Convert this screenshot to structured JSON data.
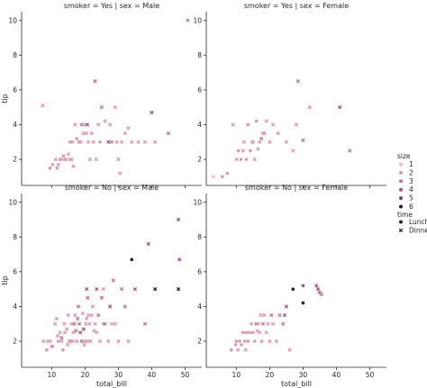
{
  "chart_data": {
    "type": "scatter",
    "facets": [
      {
        "title": "smoker = Yes | sex = Male",
        "row": 0,
        "col": 0,
        "points": [
          [
            7.3,
            5.1,
            2,
            "D"
          ],
          [
            9.5,
            1.5,
            2,
            "L"
          ],
          [
            10.3,
            1.7,
            2,
            "D"
          ],
          [
            11.2,
            2.0,
            2,
            "D"
          ],
          [
            11.6,
            1.5,
            2,
            "L"
          ],
          [
            12.0,
            1.7,
            2,
            "D"
          ],
          [
            12.5,
            2.0,
            2,
            "L"
          ],
          [
            13.0,
            2.0,
            2,
            "D"
          ],
          [
            13.5,
            2.2,
            2,
            "D"
          ],
          [
            14.0,
            2.0,
            2,
            "L"
          ],
          [
            14.3,
            2.0,
            2,
            "D"
          ],
          [
            15.0,
            2.3,
            2,
            "D"
          ],
          [
            15.5,
            2.0,
            2,
            "L"
          ],
          [
            16.0,
            2.0,
            2,
            "D"
          ],
          [
            16.5,
            1.6,
            2,
            "D"
          ],
          [
            15.5,
            3.0,
            2,
            "D"
          ],
          [
            16.3,
            3.0,
            2,
            "D"
          ],
          [
            17.0,
            4.0,
            2,
            "D"
          ],
          [
            17.5,
            3.2,
            2,
            "L"
          ],
          [
            18.2,
            3.0,
            2,
            "D"
          ],
          [
            18.7,
            3.0,
            2,
            "D"
          ],
          [
            19.0,
            4.0,
            3,
            "D"
          ],
          [
            19.5,
            3.5,
            2,
            "D"
          ],
          [
            20.0,
            4.0,
            2,
            "D"
          ],
          [
            20.4,
            3.5,
            2,
            "D"
          ],
          [
            20.7,
            4.0,
            4,
            "D"
          ],
          [
            21.0,
            3.0,
            2,
            "D"
          ],
          [
            21.5,
            2.0,
            2,
            "D"
          ],
          [
            22.0,
            3.5,
            2,
            "D"
          ],
          [
            22.5,
            3.0,
            2,
            "D"
          ],
          [
            23.0,
            6.5,
            3,
            "D"
          ],
          [
            23.3,
            2.0,
            2,
            "D"
          ],
          [
            24.0,
            4.0,
            2,
            "D"
          ],
          [
            24.5,
            3.0,
            2,
            "L"
          ],
          [
            25.0,
            5.0,
            3,
            "D"
          ],
          [
            26.0,
            4.2,
            2,
            "D"
          ],
          [
            27.0,
            3.0,
            4,
            "D"
          ],
          [
            27.5,
            4.0,
            2,
            "D"
          ],
          [
            28.0,
            3.0,
            3,
            "D"
          ],
          [
            29.0,
            5.0,
            2,
            "D"
          ],
          [
            29.5,
            3.0,
            2,
            "D"
          ],
          [
            30.0,
            2.0,
            2,
            "D"
          ],
          [
            30.5,
            1.2,
            2,
            "D"
          ],
          [
            31.0,
            3.0,
            2,
            "D"
          ],
          [
            32.0,
            3.5,
            2,
            "D"
          ],
          [
            33.0,
            3.8,
            2,
            "D"
          ],
          [
            34.0,
            3.0,
            2,
            "D"
          ],
          [
            36.0,
            3.0,
            2,
            "D"
          ],
          [
            38.0,
            3.0,
            2,
            "D"
          ],
          [
            40.0,
            4.7,
            4,
            "D"
          ],
          [
            41.0,
            3.0,
            2,
            "D"
          ],
          [
            45.0,
            3.5,
            3,
            "D"
          ],
          [
            50.8,
            10.0,
            3,
            "D"
          ]
        ]
      },
      {
        "title": "smoker = Yes | sex = Female",
        "row": 0,
        "col": 1,
        "points": [
          [
            3.1,
            1.0,
            1,
            "D"
          ],
          [
            5.8,
            1.0,
            2,
            "L"
          ],
          [
            7.3,
            1.2,
            2,
            "L"
          ],
          [
            9.0,
            4.0,
            2,
            "D"
          ],
          [
            10.1,
            2.0,
            2,
            "D"
          ],
          [
            10.6,
            2.5,
            2,
            "L"
          ],
          [
            11.4,
            2.0,
            2,
            "L"
          ],
          [
            12.0,
            2.5,
            2,
            "D"
          ],
          [
            12.3,
            3.0,
            2,
            "D"
          ],
          [
            13.0,
            2.0,
            2,
            "L"
          ],
          [
            13.5,
            4.0,
            2,
            "L"
          ],
          [
            14.2,
            2.5,
            2,
            "L"
          ],
          [
            14.8,
            3.0,
            2,
            "D"
          ],
          [
            15.0,
            3.0,
            2,
            "D"
          ],
          [
            15.5,
            2.0,
            2,
            "D"
          ],
          [
            16.0,
            4.2,
            2,
            "L"
          ],
          [
            16.5,
            2.6,
            2,
            "D"
          ],
          [
            17.0,
            3.0,
            2,
            "D"
          ],
          [
            17.5,
            3.2,
            3,
            "D"
          ],
          [
            18.0,
            3.5,
            2,
            "D"
          ],
          [
            18.4,
            3.5,
            2,
            "D"
          ],
          [
            19.0,
            4.2,
            2,
            "D"
          ],
          [
            20.0,
            3.0,
            2,
            "D"
          ],
          [
            21.0,
            4.0,
            2,
            "D"
          ],
          [
            22.5,
            3.5,
            2,
            "D"
          ],
          [
            25.0,
            3.0,
            2,
            "D"
          ],
          [
            27.0,
            2.5,
            2,
            "D"
          ],
          [
            28.0,
            4.0,
            2,
            "D"
          ],
          [
            28.5,
            6.5,
            3,
            "D"
          ],
          [
            30.0,
            3.1,
            3,
            "D"
          ],
          [
            32.0,
            5.0,
            2,
            "D"
          ],
          [
            41.0,
            5.0,
            4,
            "D"
          ],
          [
            44.0,
            2.5,
            3,
            "D"
          ]
        ]
      },
      {
        "title": "smoker = No | sex = Male",
        "row": 1,
        "col": 0,
        "points": [
          [
            7.5,
            2.0,
            2,
            "D"
          ],
          [
            8.5,
            1.5,
            2,
            "L"
          ],
          [
            8.8,
            2.0,
            2,
            "D"
          ],
          [
            9.5,
            2.0,
            2,
            "D"
          ],
          [
            10.0,
            1.7,
            2,
            "L"
          ],
          [
            10.3,
            1.7,
            2,
            "D"
          ],
          [
            11.0,
            3.0,
            2,
            "D"
          ],
          [
            11.5,
            3.3,
            2,
            "D"
          ],
          [
            12.0,
            2.0,
            2,
            "L"
          ],
          [
            12.5,
            2.5,
            2,
            "D"
          ],
          [
            13.0,
            2.0,
            2,
            "D"
          ],
          [
            13.4,
            1.5,
            2,
            "L"
          ],
          [
            13.8,
            3.0,
            2,
            "D"
          ],
          [
            14.0,
            2.5,
            2,
            "D"
          ],
          [
            14.5,
            2.7,
            2,
            "D"
          ],
          [
            15.0,
            3.5,
            2,
            "D"
          ],
          [
            15.3,
            2.0,
            2,
            "D"
          ],
          [
            15.7,
            2.0,
            2,
            "D"
          ],
          [
            16.0,
            3.0,
            2,
            "D"
          ],
          [
            16.3,
            2.0,
            2,
            "D"
          ],
          [
            16.5,
            2.5,
            2,
            "D"
          ],
          [
            16.8,
            3.0,
            3,
            "D"
          ],
          [
            17.0,
            3.5,
            2,
            "D"
          ],
          [
            17.3,
            2.6,
            3,
            "D"
          ],
          [
            17.5,
            2.0,
            2,
            "D"
          ],
          [
            17.8,
            3.3,
            3,
            "D"
          ],
          [
            18.0,
            4.0,
            3,
            "D"
          ],
          [
            18.3,
            3.0,
            3,
            "D"
          ],
          [
            18.6,
            2.5,
            4,
            "D"
          ],
          [
            19.0,
            2.0,
            3,
            "D"
          ],
          [
            19.3,
            3.6,
            2,
            "D"
          ],
          [
            19.6,
            2.7,
            4,
            "D"
          ],
          [
            20.0,
            2.0,
            2,
            "D"
          ],
          [
            20.2,
            3.0,
            2,
            "D"
          ],
          [
            20.5,
            3.3,
            2,
            "D"
          ],
          [
            20.8,
            2.0,
            2,
            "D"
          ],
          [
            21.0,
            3.5,
            2,
            "D"
          ],
          [
            21.3,
            3.0,
            2,
            "D"
          ],
          [
            21.6,
            2.0,
            2,
            "D"
          ],
          [
            22.0,
            3.5,
            2,
            "D"
          ],
          [
            22.3,
            4.0,
            2,
            "D"
          ],
          [
            22.7,
            2.6,
            2,
            "D"
          ],
          [
            23.0,
            3.0,
            2,
            "D"
          ],
          [
            23.5,
            2.5,
            2,
            "D"
          ],
          [
            24.0,
            3.5,
            3,
            "D"
          ],
          [
            24.5,
            2.0,
            2,
            "D"
          ],
          [
            25.0,
            4.5,
            3,
            "D"
          ],
          [
            25.5,
            3.0,
            2,
            "D"
          ],
          [
            26.0,
            3.0,
            3,
            "D"
          ],
          [
            27.0,
            2.0,
            2,
            "D"
          ],
          [
            27.5,
            4.0,
            4,
            "D"
          ],
          [
            28.0,
            3.0,
            2,
            "D"
          ],
          [
            28.5,
            5.5,
            3,
            "D"
          ],
          [
            29.0,
            3.0,
            2,
            "D"
          ],
          [
            30.0,
            2.0,
            2,
            "D"
          ],
          [
            31.0,
            5.0,
            3,
            "D"
          ],
          [
            32.0,
            4.0,
            3,
            "D"
          ],
          [
            33.0,
            2.0,
            2,
            "D"
          ],
          [
            34.0,
            6.7,
            6,
            "L"
          ],
          [
            35.0,
            5.0,
            4,
            "D"
          ],
          [
            38.0,
            3.0,
            3,
            "D"
          ],
          [
            39.0,
            7.6,
            4,
            "D"
          ],
          [
            41.0,
            5.0,
            6,
            "D"
          ],
          [
            48.0,
            5.0,
            6,
            "D"
          ],
          [
            48.0,
            9.0,
            4,
            "D"
          ],
          [
            48.3,
            6.7,
            4,
            "D"
          ],
          [
            20.5,
            5.0,
            4,
            "D"
          ],
          [
            23.5,
            5.0,
            4,
            "D"
          ],
          [
            13.0,
            2.2,
            3,
            "D"
          ],
          [
            11.8,
            2.3,
            2,
            "D"
          ],
          [
            14.8,
            1.8,
            2,
            "D"
          ],
          [
            19.8,
            1.8,
            2,
            "D"
          ],
          [
            20.8,
            4.5,
            3,
            "D"
          ],
          [
            25.5,
            5.0,
            2,
            "D"
          ]
        ]
      },
      {
        "title": "smoker = No | sex = Female",
        "row": 1,
        "col": 1,
        "points": [
          [
            8.5,
            1.5,
            2,
            "L"
          ],
          [
            9.8,
            1.8,
            2,
            "L"
          ],
          [
            10.0,
            2.0,
            2,
            "L"
          ],
          [
            10.5,
            1.5,
            2,
            "D"
          ],
          [
            11.0,
            2.0,
            2,
            "L"
          ],
          [
            11.5,
            1.8,
            2,
            "L"
          ],
          [
            12.0,
            2.5,
            2,
            "L"
          ],
          [
            12.5,
            2.0,
            2,
            "L"
          ],
          [
            13.0,
            2.5,
            2,
            "L"
          ],
          [
            13.5,
            2.0,
            2,
            "L"
          ],
          [
            14.0,
            2.5,
            2,
            "L"
          ],
          [
            14.5,
            3.0,
            2,
            "D"
          ],
          [
            15.0,
            2.5,
            2,
            "L"
          ],
          [
            15.5,
            2.0,
            2,
            "L"
          ],
          [
            16.0,
            3.0,
            3,
            "D"
          ],
          [
            16.3,
            2.6,
            2,
            "D"
          ],
          [
            16.6,
            3.0,
            2,
            "D"
          ],
          [
            17.0,
            2.5,
            2,
            "D"
          ],
          [
            17.3,
            3.5,
            2,
            "D"
          ],
          [
            17.6,
            2.0,
            2,
            "D"
          ],
          [
            18.0,
            3.0,
            3,
            "D"
          ],
          [
            18.4,
            3.5,
            2,
            "D"
          ],
          [
            19.0,
            2.5,
            2,
            "D"
          ],
          [
            19.5,
            3.0,
            2,
            "D"
          ],
          [
            20.0,
            2.0,
            2,
            "D"
          ],
          [
            20.5,
            3.5,
            3,
            "D"
          ],
          [
            21.0,
            3.0,
            2,
            "D"
          ],
          [
            22.0,
            2.0,
            2,
            "D"
          ],
          [
            23.0,
            3.5,
            3,
            "D"
          ],
          [
            24.0,
            3.0,
            3,
            "D"
          ],
          [
            24.5,
            3.5,
            4,
            "D"
          ],
          [
            25.0,
            4.0,
            4,
            "D"
          ],
          [
            26.0,
            1.5,
            2,
            "D"
          ],
          [
            27.0,
            5.0,
            6,
            "L"
          ],
          [
            30.0,
            5.2,
            4,
            "L"
          ],
          [
            30.0,
            4.2,
            6,
            "L"
          ],
          [
            34.0,
            5.2,
            4,
            "D"
          ],
          [
            34.5,
            5.0,
            4,
            "D"
          ],
          [
            35.0,
            4.8,
            4,
            "D"
          ],
          [
            35.5,
            4.7,
            3,
            "D"
          ],
          [
            12.8,
            1.5,
            2,
            "D"
          ]
        ]
      }
    ],
    "xlabel": "total_bill",
    "ylabel": "tip",
    "xlim": [
      1,
      55
    ],
    "ylim": [
      0.5,
      10.5
    ],
    "xticks": [
      10,
      20,
      30,
      40,
      50
    ],
    "yticks": [
      2,
      4,
      6,
      8,
      10
    ],
    "legend": {
      "placement": "right",
      "size_title": "size",
      "size_levels": [
        1,
        2,
        3,
        4,
        5,
        6
      ],
      "time_title": "time",
      "time_levels": [
        "Lunch",
        "Dinner"
      ]
    },
    "colors": {
      "1": "#ebbfc9",
      "2": "#d59ab1",
      "3": "#b8779b",
      "4": "#935a87",
      "5": "#6b3f6b",
      "6": "#2c1530"
    },
    "grid": false
  }
}
